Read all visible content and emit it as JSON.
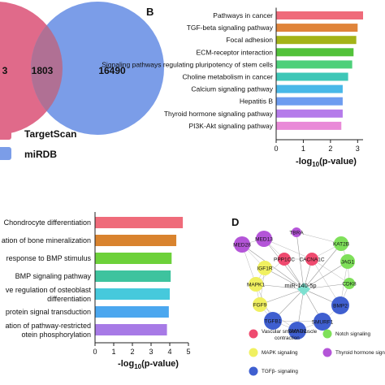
{
  "panel_labels": {
    "b": "B",
    "d": "D"
  },
  "chart_data": [
    {
      "id": "venn",
      "type": "venn",
      "sets": [
        {
          "name": "TargetScan",
          "only": "3",
          "color": "#e06a8a"
        },
        {
          "name": "miRDB",
          "only": "16490",
          "color": "#7b9de8"
        }
      ],
      "intersection": "1803",
      "overlap_color": "#b07094"
    },
    {
      "id": "bar-b",
      "type": "bar",
      "orientation": "horizontal",
      "title": "",
      "xlabel": "-log10(p-value)",
      "xlabel_parts": {
        "pre": "-log",
        "sub": "10",
        "post": "(p-value)"
      },
      "xlim": [
        0,
        3.2
      ],
      "xticks": [
        0,
        1,
        2,
        3
      ],
      "categories": [
        "Pathways in cancer",
        "TGF-beta signaling pathway",
        "Focal adhesion",
        "ECM-receptor interaction",
        "Signaling pathways regulating pluripotency of stem cells",
        "Choline metabolism in cancer",
        "Calcium signaling pathway",
        "Hepatitis B",
        "Thyroid hormone signaling pathway",
        "PI3K-Akt signaling pathway"
      ],
      "values": [
        3.2,
        3.0,
        2.95,
        2.85,
        2.8,
        2.65,
        2.45,
        2.45,
        2.45,
        2.4
      ],
      "colors": [
        "#ef6b7a",
        "#e0843a",
        "#a3b318",
        "#52c23a",
        "#4dd07a",
        "#3ec7b7",
        "#48b8e8",
        "#6d9cf0",
        "#b57bea",
        "#e98ad8"
      ]
    },
    {
      "id": "bar-c",
      "type": "bar",
      "orientation": "horizontal",
      "title": "",
      "xlabel": "-log10(p-value)",
      "xlabel_parts": {
        "pre": "-log",
        "sub": "10",
        "post": "(p-value)"
      },
      "xlim": [
        0,
        5
      ],
      "xticks": [
        0,
        1,
        2,
        3,
        4,
        5
      ],
      "categories": [
        [
          "Chondrocyte differentiation"
        ],
        [
          "ation of bone mineralization"
        ],
        [
          "response to BMP stimulus"
        ],
        [
          "BMP signaling pathway"
        ],
        [
          "ve regulation of osteoblast",
          "differentiation"
        ],
        [
          "protein signal transduction"
        ],
        [
          "ation of pathway-restricted",
          "otein phosphorylation"
        ]
      ],
      "values": [
        4.7,
        4.35,
        4.1,
        4.05,
        4.0,
        3.95,
        3.85
      ],
      "colors": [
        "#ef6b7a",
        "#d9832e",
        "#6dd13a",
        "#3ec39e",
        "#46c9dc",
        "#4ba7ef",
        "#a77ae6"
      ]
    },
    {
      "id": "network-d",
      "type": "network",
      "center": "miR-140-5p",
      "nodes": [
        {
          "label": "TBRA",
          "group": "thyroid"
        },
        {
          "label": "MED13",
          "group": "thyroid"
        },
        {
          "label": "MED28",
          "group": "thyroid"
        },
        {
          "label": "KAT2B",
          "group": "notch"
        },
        {
          "label": "JAG1",
          "group": "notch"
        },
        {
          "label": "PPP1CC",
          "group": "vascular"
        },
        {
          "label": "CACNA1C",
          "group": "vascular"
        },
        {
          "label": "IGF1R",
          "group": "mapk"
        },
        {
          "label": "MAPK1",
          "group": "mapk"
        },
        {
          "label": "CDK8",
          "group": "notch"
        },
        {
          "label": "FGF9",
          "group": "mapk"
        },
        {
          "label": "BMP2",
          "group": "tgfb"
        },
        {
          "label": "TGFB1",
          "group": "tgfb"
        },
        {
          "label": "SMURF1",
          "group": "tgfb"
        },
        {
          "label": "SMAD2",
          "group": "tgfb"
        }
      ],
      "legend": [
        {
          "label": "Vascular smooth muscle contraction",
          "color": "#ef4a6f"
        },
        {
          "label": "Notch signaling",
          "color": "#7fe05a"
        },
        {
          "label": "MAPK signaling",
          "color": "#f0f060"
        },
        {
          "label": "Thyroid hormone signal",
          "color": "#b455d8"
        },
        {
          "label": "TGFβ- signaling",
          "color": "#3f5fd0"
        }
      ],
      "colors": {
        "vascular": "#ef4a6f",
        "notch": "#7fe05a",
        "mapk": "#f0f060",
        "thyroid": "#b455d8",
        "tgfb": "#3f5fd0",
        "center": "#7ee0d0"
      }
    }
  ]
}
